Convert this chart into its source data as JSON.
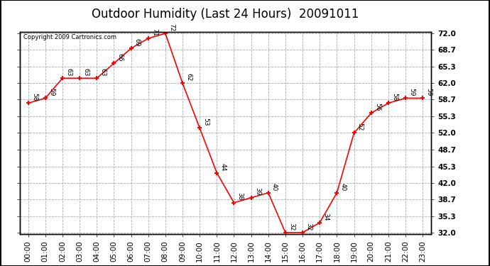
{
  "title": "Outdoor Humidity (Last 24 Hours)  20091011",
  "copyright": "Copyright 2009 Cartronics.com",
  "hours": [
    0,
    1,
    2,
    3,
    4,
    5,
    6,
    7,
    8,
    9,
    10,
    11,
    12,
    13,
    14,
    15,
    16,
    17,
    18,
    19,
    20,
    21,
    22,
    23
  ],
  "values": [
    58,
    59,
    63,
    63,
    63,
    66,
    69,
    71,
    72,
    62,
    53,
    44,
    38,
    39,
    40,
    32,
    32,
    34,
    40,
    52,
    56,
    58,
    59,
    59
  ],
  "xlabels": [
    "00:00",
    "01:00",
    "02:00",
    "03:00",
    "04:00",
    "05:00",
    "06:00",
    "07:00",
    "08:00",
    "09:00",
    "10:00",
    "11:00",
    "12:00",
    "13:00",
    "14:00",
    "15:00",
    "16:00",
    "17:00",
    "18:00",
    "19:00",
    "20:00",
    "21:00",
    "22:00",
    "23:00"
  ],
  "yticks": [
    32.0,
    35.3,
    38.7,
    42.0,
    45.3,
    48.7,
    52.0,
    55.3,
    58.7,
    62.0,
    65.3,
    68.7,
    72.0
  ],
  "ymin": 32.0,
  "ymax": 72.0,
  "line_color": "red",
  "marker_color": "red",
  "outer_bg": "white",
  "plot_bg_color": "white",
  "grid_color": "#aaaaaa",
  "label_color": "black",
  "title_fontsize": 12,
  "tick_fontsize": 7.5,
  "annotation_fontsize": 6.5,
  "copyright_fontsize": 6
}
